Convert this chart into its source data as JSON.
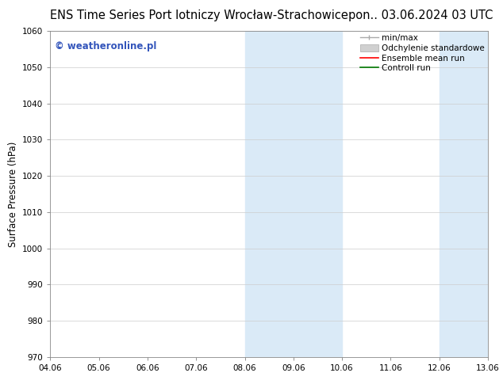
{
  "title_left": "ENS Time Series Port lotniczy Wrocław-Strachowice",
  "title_right": "pon.. 03.06.2024 03 UTC",
  "ylabel": "Surface Pressure (hPa)",
  "ylim": [
    970,
    1060
  ],
  "yticks": [
    970,
    980,
    990,
    1000,
    1010,
    1020,
    1030,
    1040,
    1050,
    1060
  ],
  "xtick_labels": [
    "04.06",
    "05.06",
    "06.06",
    "07.06",
    "08.06",
    "09.06",
    "10.06",
    "11.06",
    "12.06",
    "13.06"
  ],
  "xlim": [
    0,
    9
  ],
  "shaded_regions": [
    {
      "xstart": 4.0,
      "xend": 6.0,
      "color": "#daeaf7"
    },
    {
      "xstart": 8.0,
      "xend": 9.0,
      "color": "#daeaf7"
    }
  ],
  "bg_color": "#ffffff",
  "plot_bg_color": "#ffffff",
  "grid_color": "#cccccc",
  "watermark_text": "© weatheronline.pl",
  "watermark_color": "#3355bb",
  "legend_labels": [
    "min/max",
    "Odchylenie standardowe",
    "Ensemble mean run",
    "Controll run"
  ],
  "legend_colors_line": [
    "#aaaaaa",
    "#bbbbbb",
    "#ff0000",
    "#007700"
  ],
  "legend_handle_colors": [
    "#aaaaaa",
    "#cccccc",
    "#ff0000",
    "#007700"
  ],
  "title_fontsize": 10.5,
  "tick_label_fontsize": 7.5,
  "ylabel_fontsize": 8.5,
  "watermark_fontsize": 8.5,
  "legend_fontsize": 7.5
}
